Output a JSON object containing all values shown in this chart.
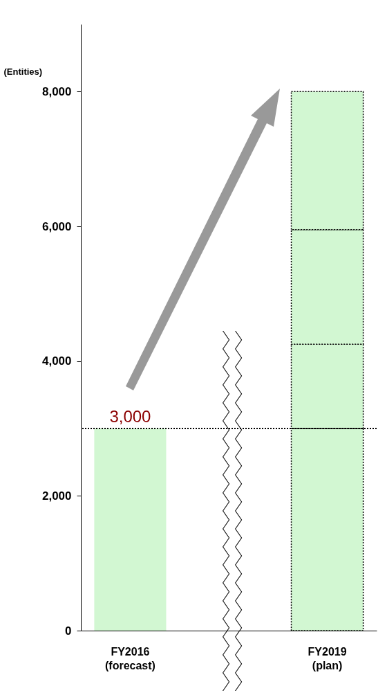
{
  "chart_data": {
    "type": "bar",
    "stacked": true,
    "categories": [
      "FY2016\n(forecast)",
      "FY2019\n(plan)"
    ],
    "ylabel": "(Entities)",
    "series": [
      {
        "color": "#d2f7d2",
        "values": [
          3000,
          null
        ],
        "value_labels": [
          "3,000",
          null
        ]
      },
      {
        "color": "#d2f7d2",
        "values": [
          null,
          3000
        ],
        "line_style": "dotted"
      },
      {
        "color": "#d2f7d2",
        "values": [
          null,
          1250
        ],
        "line_style": "dotted"
      },
      {
        "color": "#d2f7d2",
        "values": [
          null,
          1700
        ],
        "line_style": "dotted"
      },
      {
        "color": "#d2f7d2",
        "values": [
          null,
          2050
        ],
        "line_style": "dotted"
      }
    ],
    "ylim": [
      0,
      9000
    ],
    "yticks": [
      0,
      {
        "value": 2000,
        "label": "2,000"
      },
      {
        "value": 4000,
        "label": "4,000"
      },
      {
        "value": 6000,
        "label": "6,000"
      },
      {
        "value": 8000,
        "label": "8,000"
      }
    ],
    "ref_lines": [
      {
        "axis": "y",
        "value": 3000,
        "line_style": "dotted",
        "color": "#000000"
      }
    ],
    "grid": false,
    "legend": false
  }
}
